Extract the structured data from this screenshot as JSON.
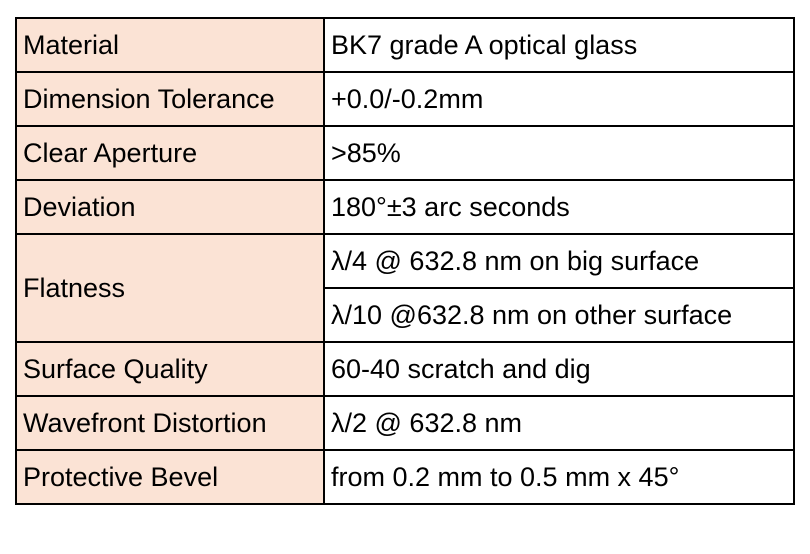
{
  "title": "",
  "colors": {
    "label_bg": "#fbe3d5",
    "value_bg": "#ffffff",
    "border": "#000000"
  },
  "rows": [
    {
      "label": "Material",
      "values": [
        "BK7 grade A optical glass"
      ]
    },
    {
      "label": "Dimension Tolerance",
      "values": [
        "+0.0/-0.2mm"
      ]
    },
    {
      "label": "Clear Aperture",
      "values": [
        ">85%"
      ]
    },
    {
      "label": "Deviation",
      "values": [
        "180°±3 arc seconds"
      ]
    },
    {
      "label": "Flatness",
      "values": [
        "λ/4 @ 632.8 nm on big surface",
        "λ/10 @632.8 nm on other surface"
      ]
    },
    {
      "label": "Surface Quality",
      "values": [
        "60-40 scratch and dig"
      ]
    },
    {
      "label": "Wavefront Distortion",
      "values": [
        "λ/2 @ 632.8 nm"
      ]
    },
    {
      "label": "Protective Bevel",
      "values": [
        "from 0.2 mm to 0.5 mm x 45°"
      ]
    }
  ]
}
